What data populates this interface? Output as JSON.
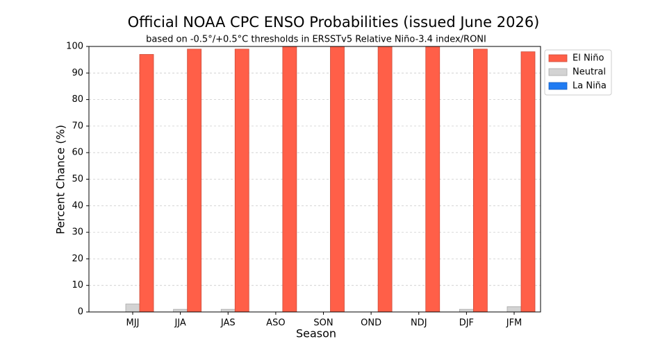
{
  "chart_data": {
    "type": "grouped_bar",
    "title": "Official NOAA CPC ENSO Probabilities (issued June 2026)",
    "subtitle": "based on -0.5°/+0.5°C thresholds in ERSSTv5 Relative Niño-3.4 index/RONI",
    "x_label": "Season",
    "y_label": "Percent Chance (%)",
    "categories": [
      "MJJ",
      "JJA",
      "JAS",
      "ASO",
      "SON",
      "OND",
      "NDJ",
      "DJF",
      "JFM"
    ],
    "series": [
      {
        "name": "La Niña",
        "color": "#1f7bf2",
        "values": [
          0,
          0,
          0,
          0,
          0,
          0,
          0,
          0,
          0
        ]
      },
      {
        "name": "Neutral",
        "color": "#d3d3d3",
        "values": [
          3,
          1,
          1,
          0,
          0,
          0,
          0,
          1,
          2
        ]
      },
      {
        "name": "El Niño",
        "color": "#ff5f48",
        "values": [
          97,
          99,
          99,
          100,
          100,
          100,
          100,
          99,
          98
        ]
      }
    ],
    "legend_order": [
      2,
      1,
      0
    ],
    "legend": "right",
    "ylim": [
      0,
      100
    ],
    "yticks": [
      0,
      10,
      20,
      30,
      40,
      50,
      60,
      70,
      80,
      90,
      100
    ],
    "grid": true
  }
}
